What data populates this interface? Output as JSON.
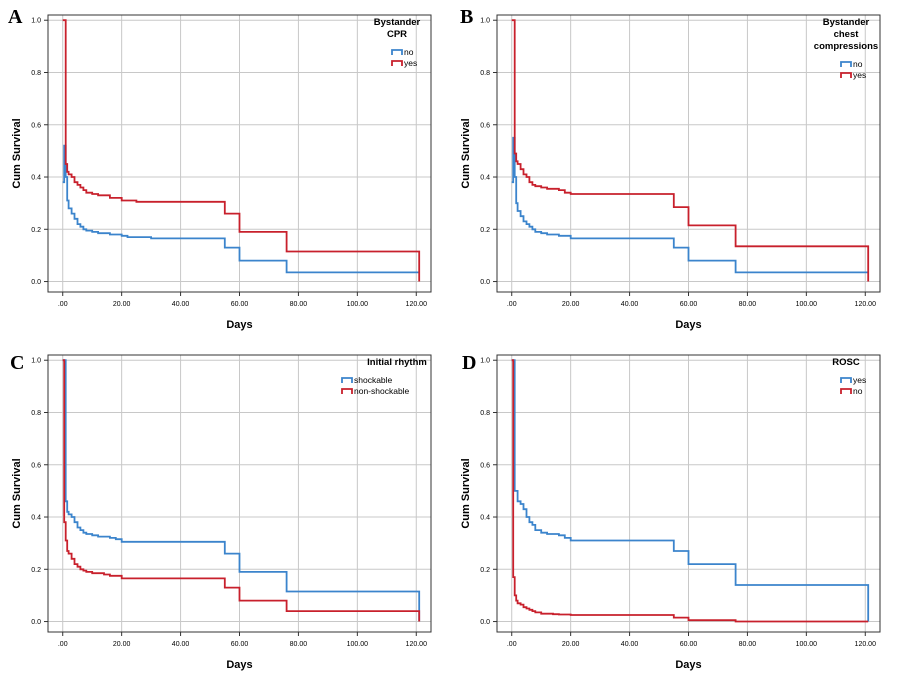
{
  "panels": [
    {
      "letter": "A"
    },
    {
      "letter": "B"
    },
    {
      "letter": "C"
    },
    {
      "letter": "D"
    }
  ],
  "chart_data": [
    {
      "type": "line",
      "step": true,
      "xlabel": "Days",
      "ylabel": "Cum Survival",
      "xlim": [
        -5,
        125
      ],
      "ylim": [
        -0.04,
        1.02
      ],
      "xticks": [
        0,
        20,
        40,
        60,
        80,
        100,
        120
      ],
      "xtick_labels": [
        ".00",
        "20.00",
        "40.00",
        "60.00",
        "80.00",
        "100.00",
        "120.00"
      ],
      "yticks": [
        0,
        0.2,
        0.4,
        0.6,
        0.8,
        1.0
      ],
      "ytick_labels": [
        "0.0",
        "0.2",
        "0.4",
        "0.6",
        "0.8",
        "1.0"
      ],
      "grid": true,
      "legend_title": [
        "Bystander",
        "CPR"
      ],
      "legend_position": "top-right",
      "series": [
        {
          "name": "no",
          "color": "#3b84cc",
          "x": [
            0,
            0.5,
            1,
            1.5,
            2,
            3,
            4,
            5,
            6,
            7,
            8,
            10,
            12,
            14,
            16,
            20,
            22,
            25,
            30,
            40,
            50,
            55,
            60,
            70,
            76,
            90,
            100,
            110,
            120,
            121
          ],
          "y": [
            0.38,
            0.52,
            0.4,
            0.31,
            0.28,
            0.26,
            0.24,
            0.22,
            0.21,
            0.2,
            0.195,
            0.19,
            0.185,
            0.185,
            0.18,
            0.175,
            0.17,
            0.17,
            0.165,
            0.165,
            0.165,
            0.13,
            0.08,
            0.08,
            0.035,
            0.035,
            0.035,
            0.035,
            0.035,
            0.035
          ]
        },
        {
          "name": "yes",
          "color": "#c8202c",
          "x": [
            0,
            0.5,
            1,
            1.5,
            2,
            3,
            4,
            5,
            6,
            7,
            8,
            10,
            12,
            14,
            16,
            18,
            20,
            25,
            30,
            40,
            50,
            55,
            60,
            70,
            76,
            90,
            100,
            110,
            120,
            121
          ],
          "y": [
            1.0,
            1.0,
            0.45,
            0.42,
            0.41,
            0.4,
            0.38,
            0.37,
            0.36,
            0.35,
            0.34,
            0.335,
            0.33,
            0.33,
            0.32,
            0.32,
            0.31,
            0.305,
            0.305,
            0.305,
            0.305,
            0.26,
            0.19,
            0.19,
            0.115,
            0.115,
            0.115,
            0.115,
            0.115,
            0.0
          ]
        }
      ]
    },
    {
      "type": "line",
      "step": true,
      "xlabel": "Days",
      "ylabel": "Cum Survival",
      "xlim": [
        -5,
        125
      ],
      "ylim": [
        -0.04,
        1.02
      ],
      "xticks": [
        0,
        20,
        40,
        60,
        80,
        100,
        120
      ],
      "xtick_labels": [
        ".00",
        "20.00",
        "40.00",
        "60.00",
        "80.00",
        "100.00",
        "120.00"
      ],
      "yticks": [
        0,
        0.2,
        0.4,
        0.6,
        0.8,
        1.0
      ],
      "ytick_labels": [
        "0.0",
        "0.2",
        "0.4",
        "0.6",
        "0.8",
        "1.0"
      ],
      "grid": true,
      "legend_title": [
        "Bystander",
        "chest",
        "compressions"
      ],
      "legend_position": "top-right",
      "series": [
        {
          "name": "no",
          "color": "#3b84cc",
          "x": [
            0,
            0.5,
            1,
            1.5,
            2,
            3,
            4,
            5,
            6,
            7,
            8,
            10,
            12,
            14,
            16,
            20,
            22,
            25,
            30,
            40,
            50,
            55,
            60,
            70,
            76,
            90,
            100,
            110,
            120,
            121
          ],
          "y": [
            0.38,
            0.55,
            0.4,
            0.3,
            0.27,
            0.25,
            0.23,
            0.22,
            0.21,
            0.2,
            0.19,
            0.185,
            0.18,
            0.18,
            0.175,
            0.165,
            0.165,
            0.165,
            0.165,
            0.165,
            0.165,
            0.13,
            0.08,
            0.08,
            0.035,
            0.035,
            0.035,
            0.035,
            0.035,
            0.035
          ]
        },
        {
          "name": "yes",
          "color": "#c8202c",
          "x": [
            0,
            0.5,
            1,
            1.5,
            2,
            3,
            4,
            5,
            6,
            7,
            8,
            10,
            12,
            14,
            16,
            18,
            20,
            25,
            30,
            40,
            50,
            55,
            60,
            70,
            76,
            90,
            100,
            110,
            120,
            121
          ],
          "y": [
            1.0,
            1.0,
            0.49,
            0.46,
            0.45,
            0.43,
            0.41,
            0.4,
            0.38,
            0.37,
            0.365,
            0.36,
            0.355,
            0.355,
            0.35,
            0.34,
            0.335,
            0.335,
            0.335,
            0.335,
            0.335,
            0.285,
            0.215,
            0.215,
            0.135,
            0.135,
            0.135,
            0.135,
            0.135,
            0.0
          ]
        }
      ]
    },
    {
      "type": "line",
      "step": true,
      "xlabel": "Days",
      "ylabel": "Cum Survival",
      "xlim": [
        -5,
        125
      ],
      "ylim": [
        -0.04,
        1.02
      ],
      "xticks": [
        0,
        20,
        40,
        60,
        80,
        100,
        120
      ],
      "xtick_labels": [
        ".00",
        "20.00",
        "40.00",
        "60.00",
        "80.00",
        "100.00",
        "120.00"
      ],
      "yticks": [
        0,
        0.2,
        0.4,
        0.6,
        0.8,
        1.0
      ],
      "ytick_labels": [
        "0.0",
        "0.2",
        "0.4",
        "0.6",
        "0.8",
        "1.0"
      ],
      "grid": true,
      "legend_title": [
        "Initial rhythm"
      ],
      "legend_position": "top-right",
      "series": [
        {
          "name": "shockable",
          "color": "#3b84cc",
          "x": [
            0,
            1,
            1.5,
            2,
            3,
            4,
            5,
            6,
            7,
            8,
            10,
            12,
            14,
            16,
            18,
            20,
            25,
            30,
            40,
            50,
            55,
            60,
            70,
            76,
            90,
            100,
            110,
            120,
            121
          ],
          "y": [
            1.0,
            0.46,
            0.42,
            0.41,
            0.4,
            0.38,
            0.36,
            0.35,
            0.34,
            0.335,
            0.33,
            0.325,
            0.325,
            0.32,
            0.315,
            0.305,
            0.305,
            0.305,
            0.305,
            0.305,
            0.26,
            0.19,
            0.19,
            0.115,
            0.115,
            0.115,
            0.115,
            0.115,
            0.0
          ]
        },
        {
          "name": "non-shockable",
          "color": "#c8202c",
          "x": [
            0,
            0.5,
            1,
            1.5,
            2,
            3,
            4,
            5,
            6,
            7,
            8,
            10,
            12,
            14,
            16,
            20,
            25,
            30,
            40,
            50,
            55,
            60,
            70,
            76,
            90,
            100,
            110,
            120,
            121
          ],
          "y": [
            1.0,
            0.38,
            0.31,
            0.27,
            0.26,
            0.24,
            0.22,
            0.21,
            0.2,
            0.195,
            0.19,
            0.185,
            0.185,
            0.18,
            0.175,
            0.165,
            0.165,
            0.165,
            0.165,
            0.165,
            0.13,
            0.08,
            0.08,
            0.04,
            0.04,
            0.04,
            0.04,
            0.04,
            0.0
          ]
        }
      ]
    },
    {
      "type": "line",
      "step": true,
      "xlabel": "Days",
      "ylabel": "Cum Survival",
      "xlim": [
        -5,
        125
      ],
      "ylim": [
        -0.04,
        1.02
      ],
      "xticks": [
        0,
        20,
        40,
        60,
        80,
        100,
        120
      ],
      "xtick_labels": [
        ".00",
        "20.00",
        "40.00",
        "60.00",
        "80.00",
        "100.00",
        "120.00"
      ],
      "yticks": [
        0,
        0.2,
        0.4,
        0.6,
        0.8,
        1.0
      ],
      "ytick_labels": [
        "0.0",
        "0.2",
        "0.4",
        "0.6",
        "0.8",
        "1.0"
      ],
      "grid": true,
      "legend_title": [
        "ROSC"
      ],
      "legend_position": "top-right",
      "series": [
        {
          "name": "yes",
          "color": "#3b84cc",
          "x": [
            0,
            1,
            2,
            3,
            4,
            5,
            6,
            7,
            8,
            10,
            12,
            14,
            16,
            18,
            20,
            25,
            30,
            40,
            50,
            55,
            60,
            70,
            76,
            90,
            100,
            110,
            120,
            121
          ],
          "y": [
            1.0,
            0.5,
            0.46,
            0.45,
            0.43,
            0.4,
            0.38,
            0.37,
            0.35,
            0.34,
            0.335,
            0.335,
            0.33,
            0.32,
            0.31,
            0.31,
            0.31,
            0.31,
            0.31,
            0.27,
            0.22,
            0.22,
            0.14,
            0.14,
            0.14,
            0.14,
            0.14,
            0.0
          ]
        },
        {
          "name": "no",
          "color": "#c8202c",
          "x": [
            0,
            0.5,
            1,
            1.5,
            2,
            3,
            4,
            5,
            6,
            7,
            8,
            10,
            12,
            14,
            16,
            20,
            25,
            30,
            40,
            50,
            55,
            60,
            70,
            76,
            90,
            100,
            110,
            120,
            121
          ],
          "y": [
            1.0,
            0.17,
            0.1,
            0.08,
            0.07,
            0.065,
            0.055,
            0.05,
            0.045,
            0.04,
            0.035,
            0.03,
            0.03,
            0.028,
            0.027,
            0.025,
            0.025,
            0.025,
            0.025,
            0.025,
            0.015,
            0.005,
            0.005,
            0.0,
            0.0,
            0.0,
            0.0,
            0.0,
            0.0
          ]
        }
      ]
    }
  ]
}
